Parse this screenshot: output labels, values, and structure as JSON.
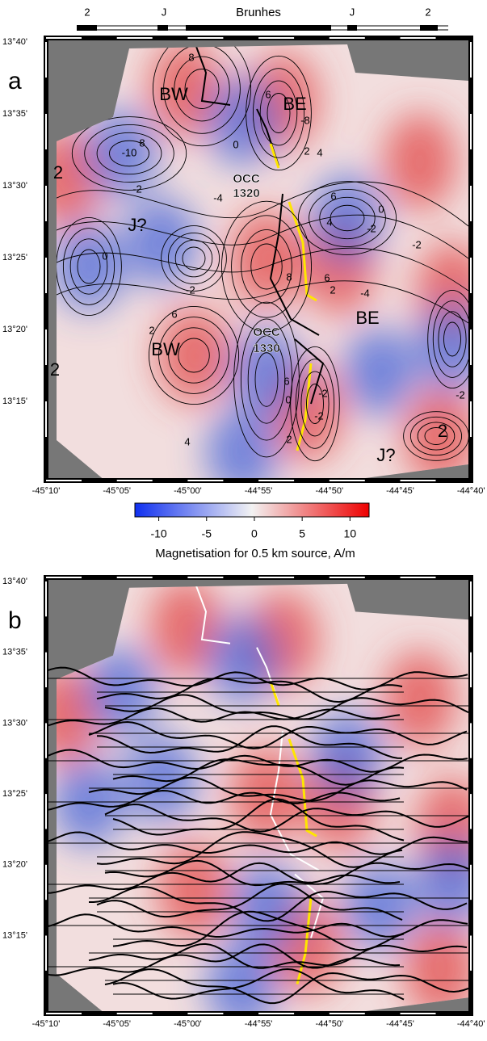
{
  "chron_scale": {
    "labels": [
      "2",
      "J",
      "Brunhes",
      "J",
      "2"
    ]
  },
  "panel_a": {
    "letter": "a",
    "y_ticks": [
      "13°40'",
      "13°35'",
      "13°30'",
      "13°25'",
      "13°20'",
      "13°15'"
    ],
    "x_ticks": [
      "-45°10'",
      "-45°05'",
      "-45°00'",
      "-44°55'",
      "-44°50'",
      "-44°45'",
      "-44°40'"
    ],
    "annotations": [
      "BW",
      "BE",
      "2",
      "J?",
      "OCC",
      "1320",
      "BE",
      "BW",
      "OCC",
      "1330",
      "2",
      "J?",
      "2"
    ],
    "contour_labels": [
      "8",
      "6",
      "-10",
      "8",
      "-8",
      "2",
      "4",
      "0",
      "-2",
      "-4",
      "0",
      "-2",
      "6",
      "4",
      "8",
      "6",
      "2",
      "0",
      "-2",
      "6",
      "-4",
      "-2",
      "2",
      "0",
      "-2",
      "-2",
      "4",
      "6",
      "2",
      "-2"
    ]
  },
  "colorbar": {
    "ticks": [
      -10,
      -5,
      0,
      5,
      10
    ],
    "lim": [
      -12.5,
      12
    ],
    "label": "Magnetisation for 0.5 km source, A/m"
  },
  "panel_b": {
    "letter": "b",
    "y_ticks": [
      "13°40'",
      "13°35'",
      "13°30'",
      "13°25'",
      "13°20'",
      "13°15'"
    ],
    "x_ticks": [
      "-45°10'",
      "-45°05'",
      "-45°00'",
      "-44°55'",
      "-44°50'",
      "-44°45'",
      "-44°40'"
    ]
  }
}
